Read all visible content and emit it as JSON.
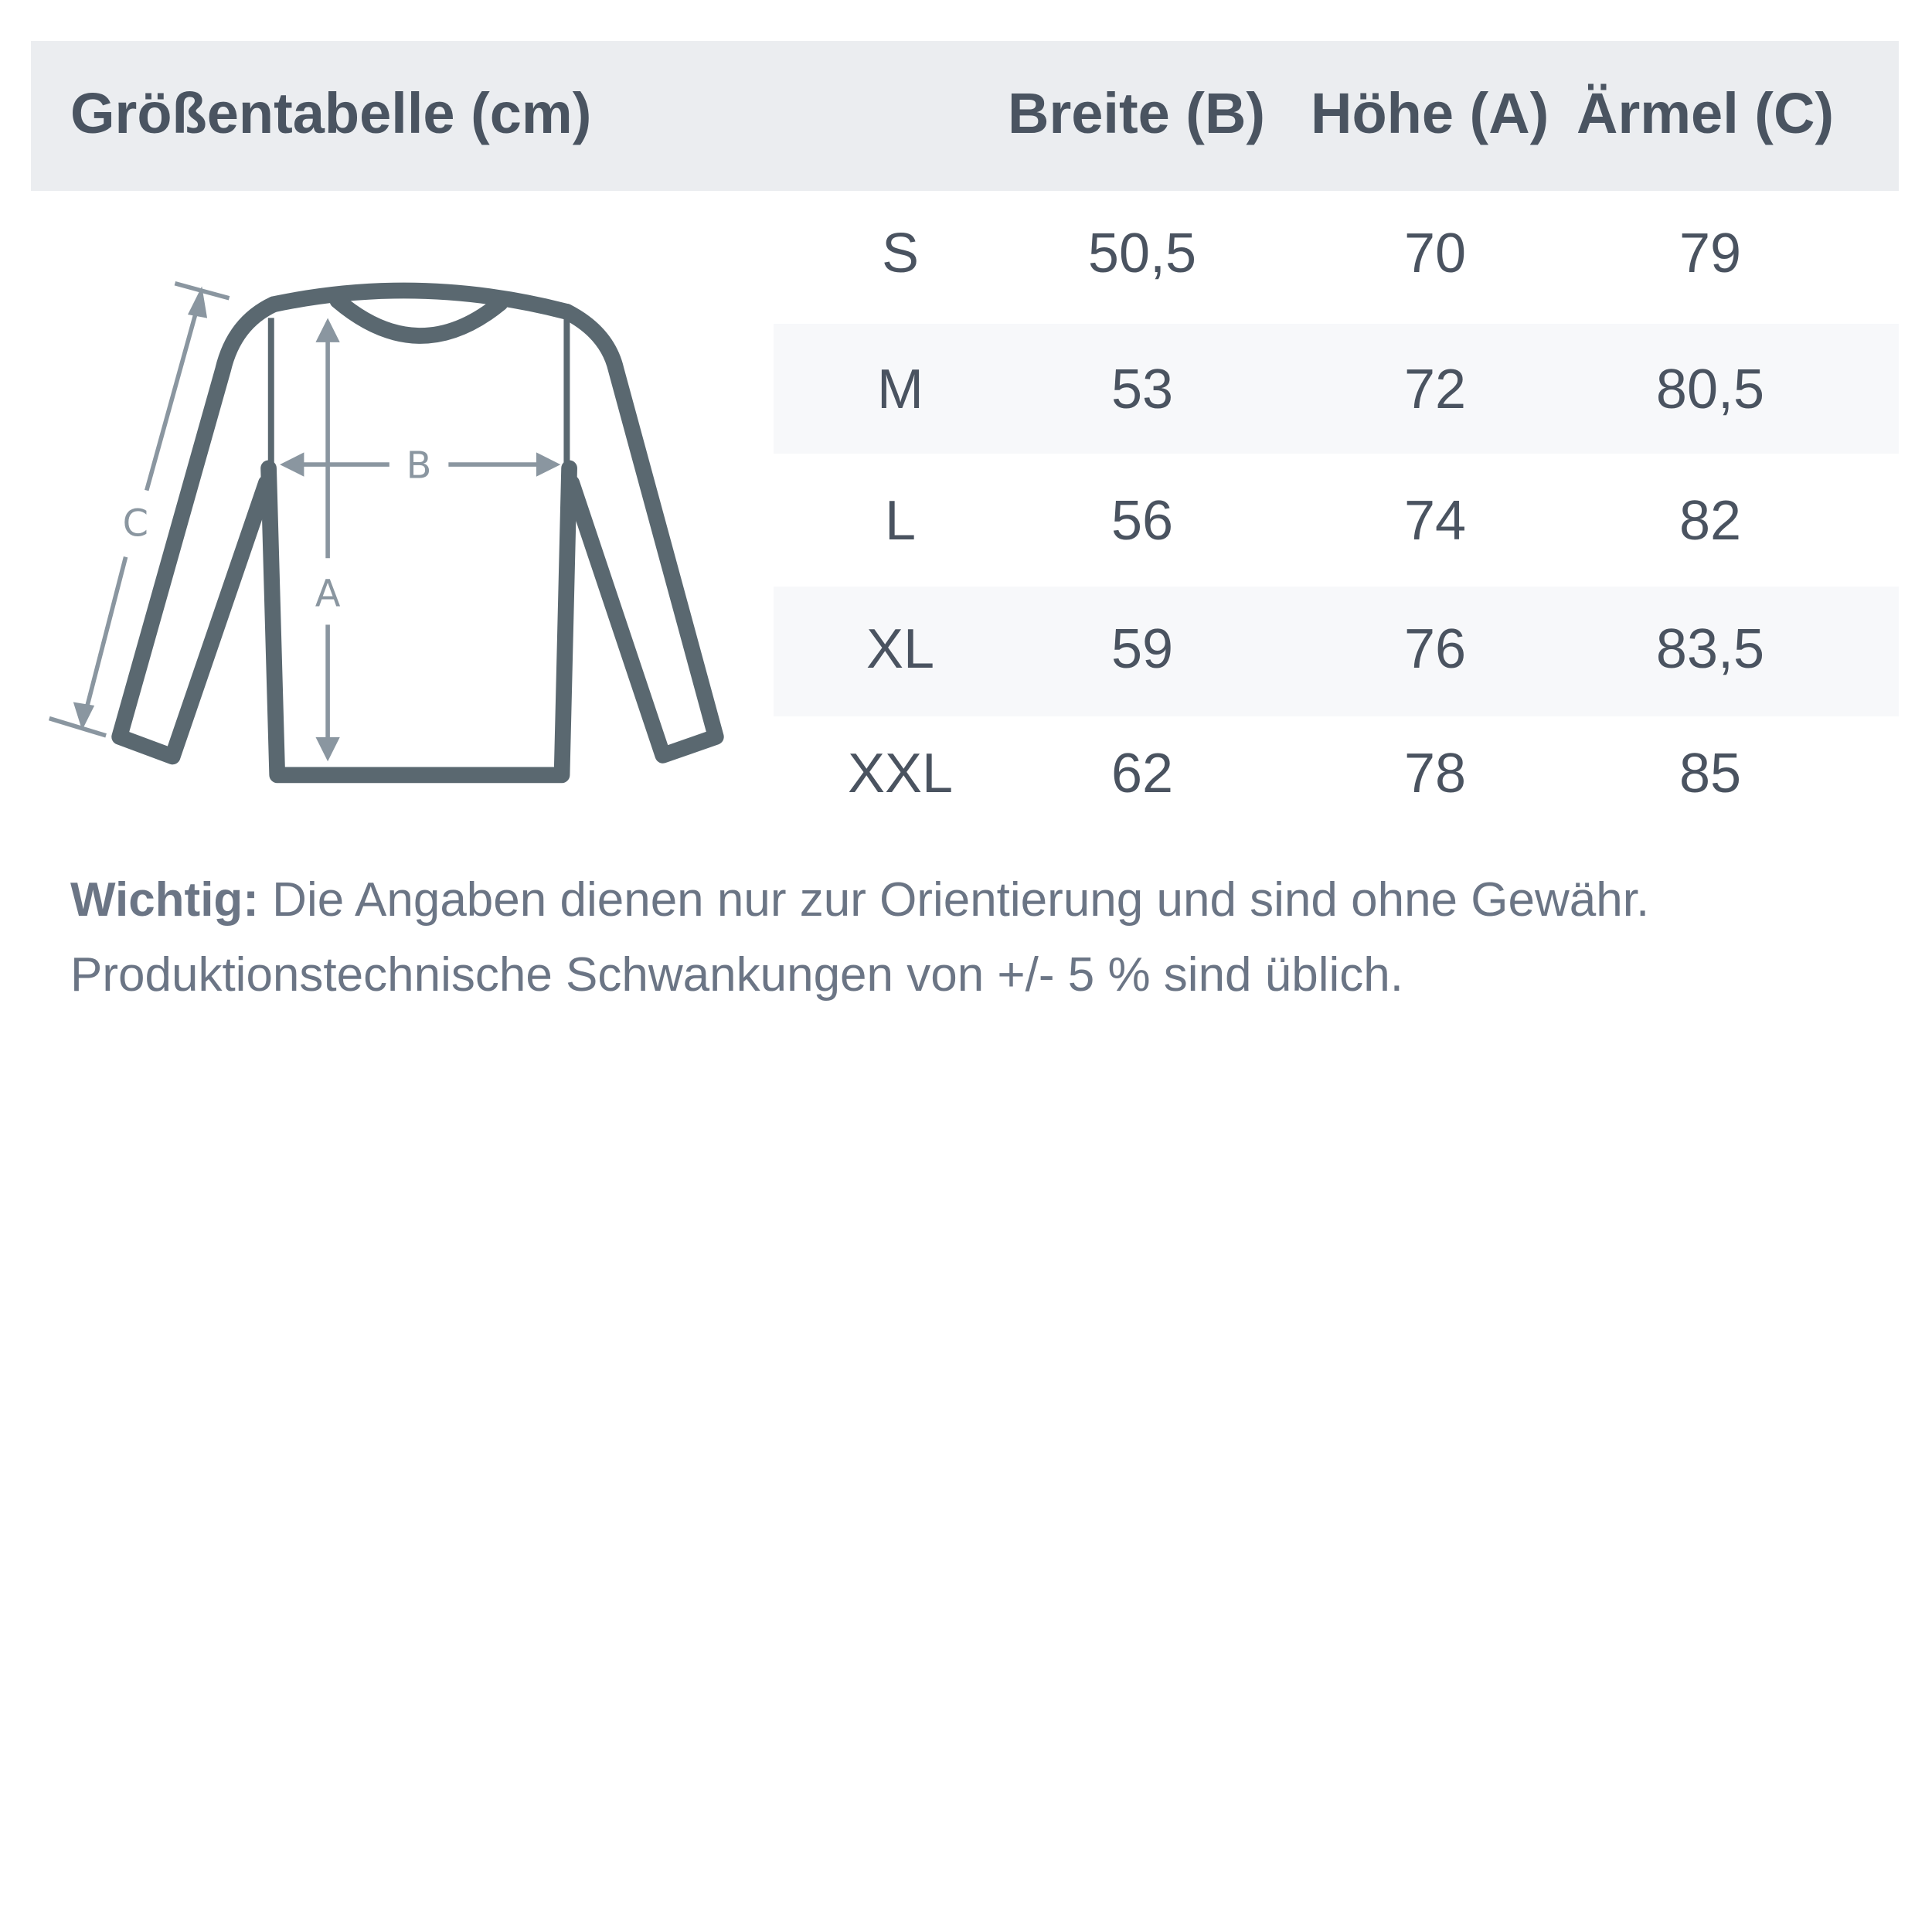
{
  "title": "Größentabelle (cm)",
  "columns": [
    "Breite (B)",
    "Höhe (A)",
    "Ärmel (C)"
  ],
  "rows": [
    {
      "size": "S",
      "breite": "50,5",
      "hoehe": "70",
      "aermel": "79"
    },
    {
      "size": "M",
      "breite": "53",
      "hoehe": "72",
      "aermel": "80,5"
    },
    {
      "size": "L",
      "breite": "56",
      "hoehe": "74",
      "aermel": "82"
    },
    {
      "size": "XL",
      "breite": "59",
      "hoehe": "76",
      "aermel": "83,5"
    },
    {
      "size": "XXL",
      "breite": "62",
      "hoehe": "78",
      "aermel": "85"
    }
  ],
  "diagram_labels": {
    "a": "A",
    "b": "B",
    "c": "C"
  },
  "note": {
    "bold": "Wichtig:",
    "line1": " Die Angaben dienen nur zur Orientierung und sind ohne Gewähr.",
    "line2": "Produktionstechnische Schwankungen von +/- 5 % sind üblich."
  },
  "colors": {
    "header_bg": "#ebedf0",
    "text": "#4a5461",
    "shirt_outline": "#5a6870",
    "measure_lines": "#8a96a0"
  }
}
